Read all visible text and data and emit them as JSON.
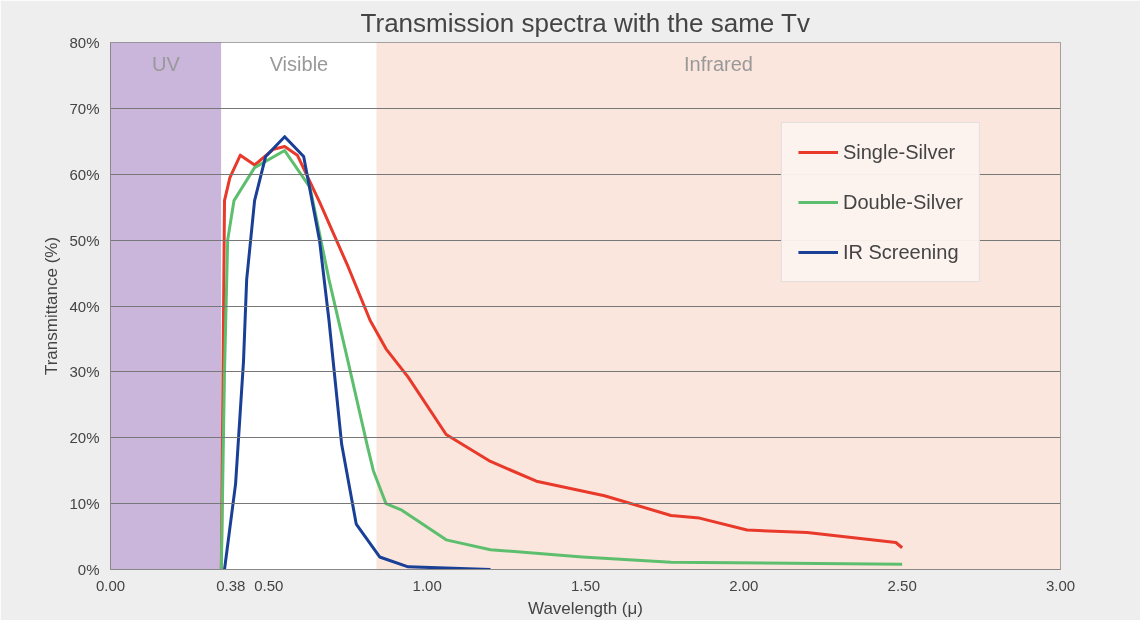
{
  "chart_data": {
    "type": "line",
    "title": "Transmission spectra with the same Tv",
    "xlabel": "Wavelength (μ)",
    "ylabel": "Transmittance (%)",
    "xlim": [
      0,
      3
    ],
    "xticks": [
      {
        "value": 0,
        "label": "0.00"
      },
      {
        "value": 0.38,
        "label": "0.38"
      },
      {
        "value": 0.5,
        "label": "0.50"
      },
      {
        "value": 1,
        "label": "1.00"
      },
      {
        "value": 1.5,
        "label": "1.50"
      },
      {
        "value": 2,
        "label": "2.00"
      },
      {
        "value": 2.5,
        "label": "2.50"
      },
      {
        "value": 3,
        "label": "3.00"
      }
    ],
    "ylim": [
      0,
      80
    ],
    "yticks": [
      {
        "value": 0,
        "label": "0%"
      },
      {
        "value": 10,
        "label": "10%"
      },
      {
        "value": 20,
        "label": "20%"
      },
      {
        "value": 30,
        "label": "30%"
      },
      {
        "value": 40,
        "label": "40%"
      },
      {
        "value": 50,
        "label": "50%"
      },
      {
        "value": 60,
        "label": "60%"
      },
      {
        "value": 70,
        "label": "70%"
      },
      {
        "value": 80,
        "label": "80%"
      }
    ],
    "grid": "y",
    "legend": "top right",
    "line_style": "solid",
    "bands": [
      {
        "axis": "x",
        "from": 0,
        "to": 0.35,
        "label": "UV",
        "color": "#c9b6da"
      },
      {
        "axis": "x",
        "from": 0.35,
        "to": 0.84,
        "label": "Visible",
        "color": "#ffffff"
      },
      {
        "axis": "x",
        "from": 0.84,
        "to": 3,
        "label": "Infrared",
        "color": "#fbe6dd"
      }
    ],
    "series": [
      {
        "name": "Single-Silver",
        "color": "#e8392a",
        "x": [
          0.35,
          0.36,
          0.377,
          0.41,
          0.455,
          0.515,
          0.55,
          0.59,
          0.66,
          0.75,
          0.82,
          0.87,
          0.94,
          1.06,
          1.2,
          1.345,
          1.56,
          1.77,
          1.86,
          2.01,
          2.2,
          2.48,
          2.5
        ],
        "values": [
          0,
          56,
          59.5,
          62.9,
          61.4,
          63.8,
          64.2,
          62.9,
          55.8,
          46,
          37.8,
          33.5,
          29.2,
          20.5,
          16.4,
          13.4,
          11.2,
          8.2,
          7.8,
          6,
          5.6,
          4.1,
          3.3
        ]
      },
      {
        "name": "Double-Silver",
        "color": "#5dbf6e",
        "x": [
          0.35,
          0.36,
          0.37,
          0.39,
          0.455,
          0.55,
          0.63,
          0.69,
          0.75,
          0.81,
          0.83,
          0.87,
          0.92,
          1.06,
          1.2,
          1.49,
          1.77,
          2.5
        ],
        "values": [
          0,
          30,
          50,
          56,
          61,
          63.6,
          58,
          44,
          31.6,
          19,
          15,
          10,
          9,
          4.5,
          3,
          1.9,
          1.1,
          0.8
        ]
      },
      {
        "name": "IR Screening",
        "color": "#1a3f96",
        "x": [
          0.36,
          0.395,
          0.42,
          0.43,
          0.455,
          0.49,
          0.55,
          0.61,
          0.66,
          0.69,
          0.73,
          0.776,
          0.85,
          0.94,
          1.2
        ],
        "values": [
          0,
          13,
          31.6,
          44,
          56,
          62.7,
          65.7,
          62.7,
          50,
          37.8,
          19,
          6.9,
          1.9,
          0.4,
          0
        ]
      }
    ]
  }
}
